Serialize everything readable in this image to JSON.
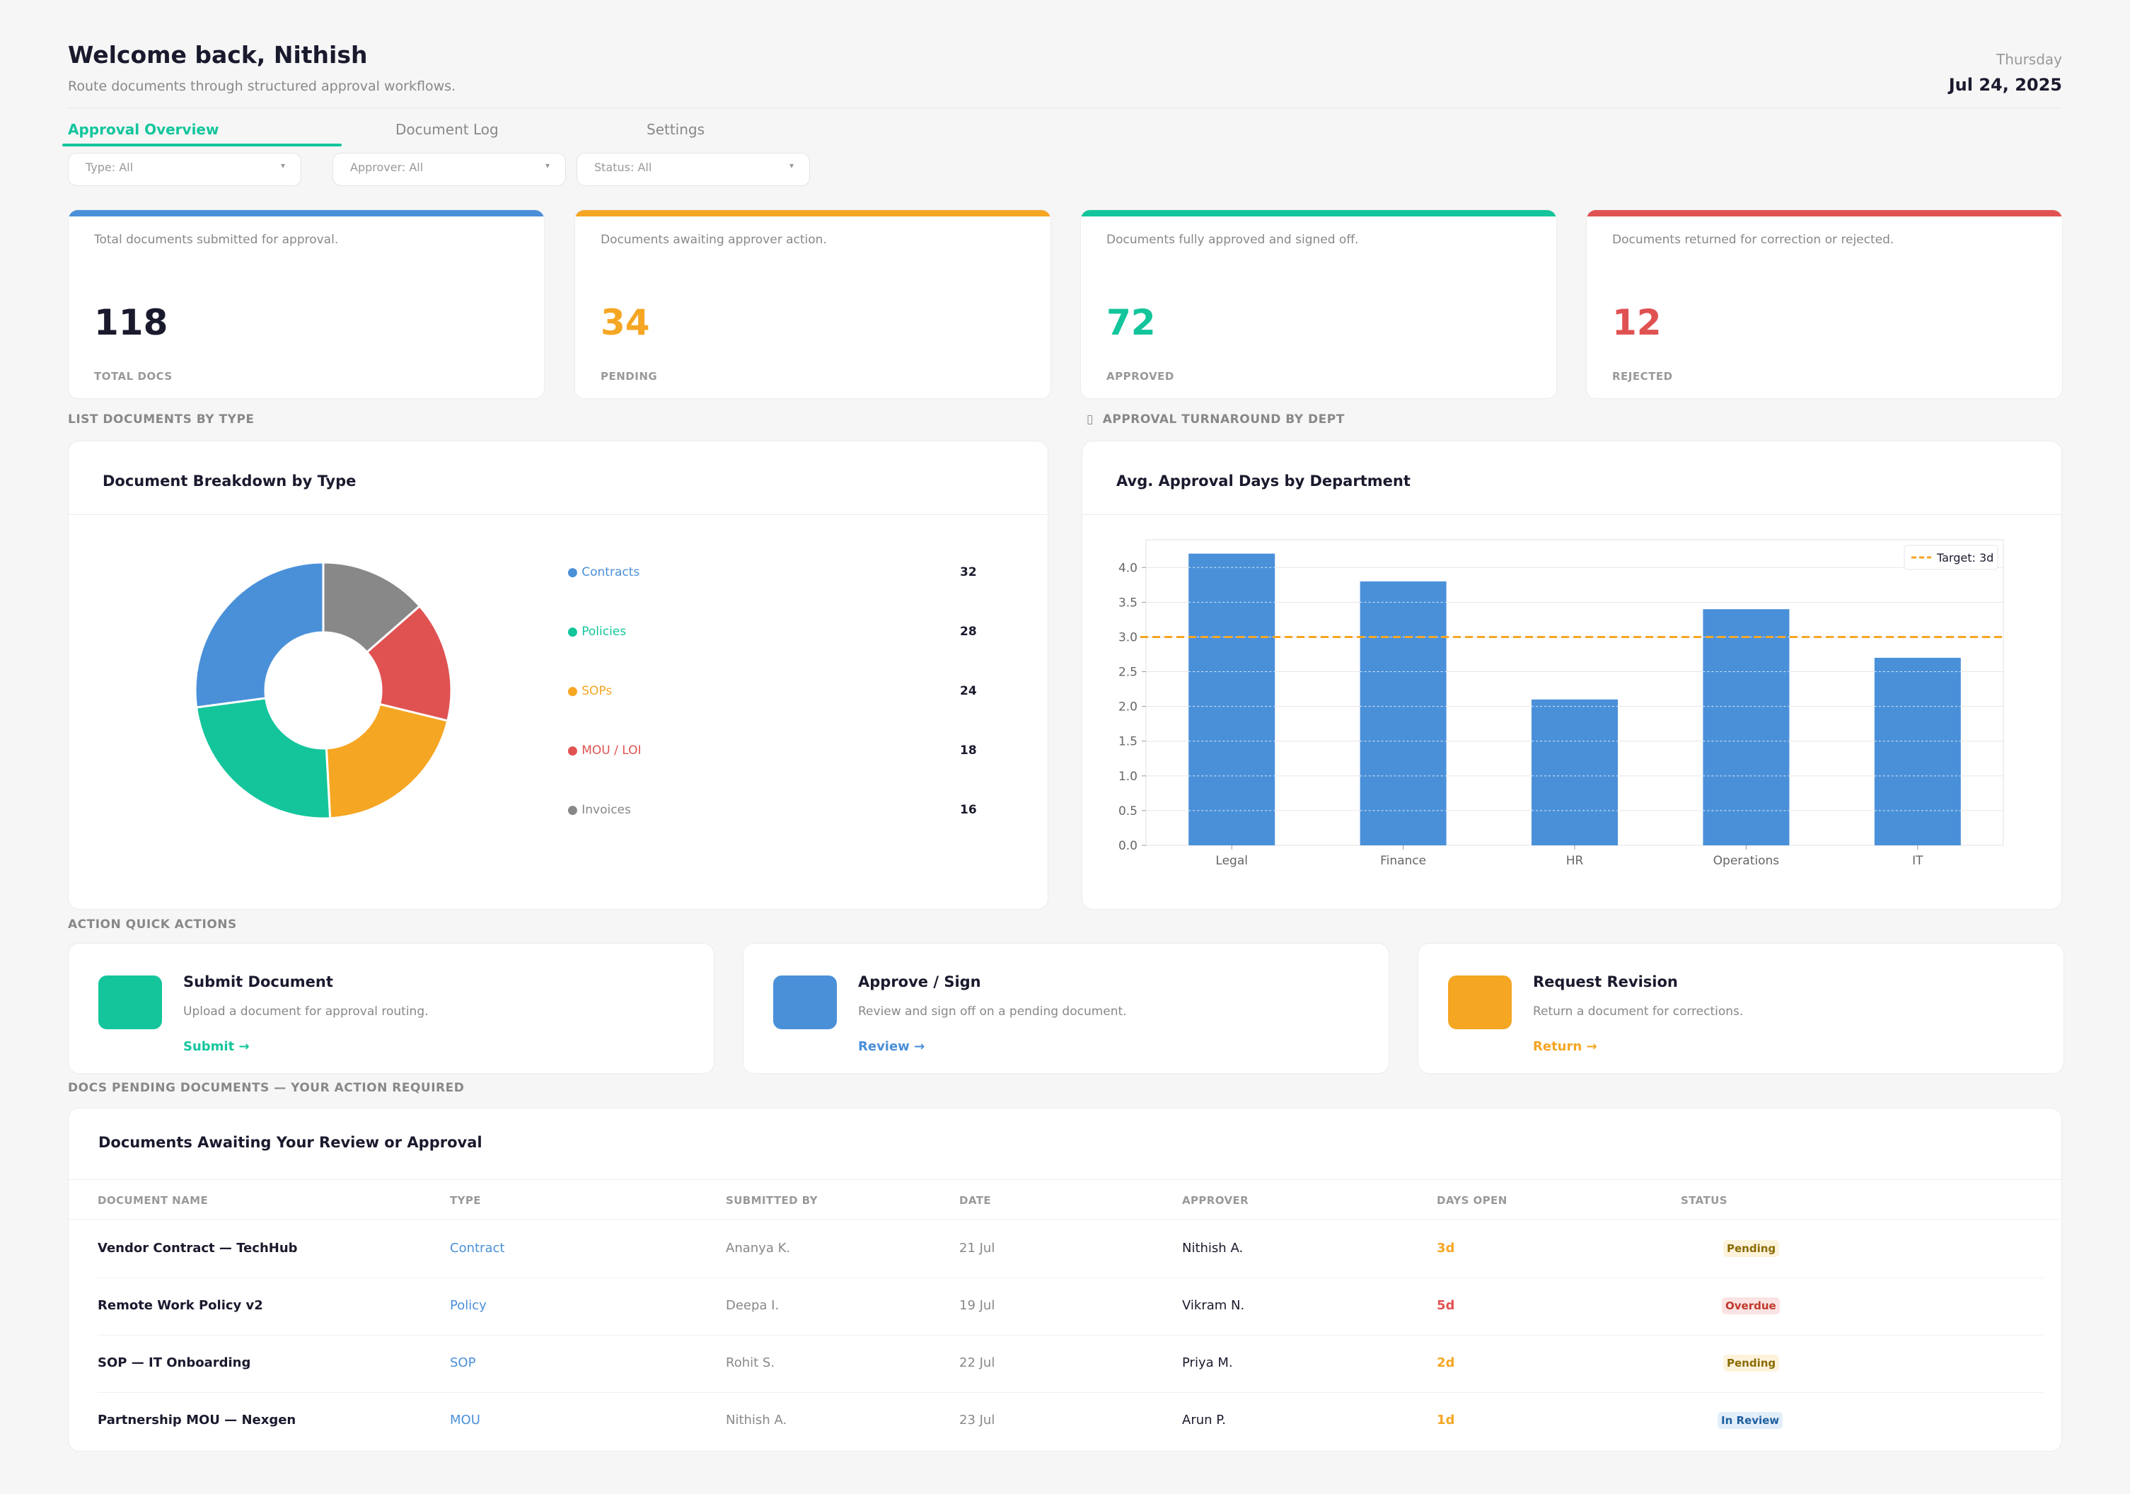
{
  "header": {
    "greeting": "Welcome back, Nithish",
    "subtitle": "Route documents through structured approval workflows.",
    "day": "Thursday",
    "date": "Jul 24, 2025"
  },
  "tabs": [
    {
      "label": "Approval Overview",
      "active": true
    },
    {
      "label": "Document Log",
      "active": false
    },
    {
      "label": "Settings",
      "active": false
    }
  ],
  "filters": [
    {
      "label": "Type: All",
      "caret": "▾"
    },
    {
      "label": "Approver: All",
      "caret": "▾"
    },
    {
      "label": "Status: All",
      "caret": "▾"
    }
  ],
  "kpis": [
    {
      "desc": "Total documents submitted for approval.",
      "value": "118",
      "label": "TOTAL DOCS",
      "color": "#4a90d9",
      "value_color": "#1a1a2e"
    },
    {
      "desc": "Documents awaiting approver action.",
      "value": "34",
      "label": "PENDING",
      "color": "#f5a623",
      "value_color": "#f5a623"
    },
    {
      "desc": "Documents fully approved and signed off.",
      "value": "72",
      "label": "APPROVED",
      "color": "#14c59c",
      "value_color": "#14c59c"
    },
    {
      "desc": "Documents returned for correction or rejected.",
      "value": "12",
      "label": "REJECTED",
      "color": "#e05252",
      "value_color": "#e05252"
    }
  ],
  "sections": {
    "by_type": "LIST  DOCUMENTS BY TYPE",
    "turnaround_icon": "▯",
    "turnaround": "APPROVAL TURNAROUND BY DEPT",
    "quick_actions": "ACTION  QUICK ACTIONS",
    "pending": "DOCS  PENDING DOCUMENTS — YOUR ACTION REQUIRED"
  },
  "breakdown_panel": {
    "title": "Document Breakdown by Type",
    "bullet": "●"
  },
  "turnaround_panel": {
    "title": "Avg. Approval Days by Department"
  },
  "chart_data": [
    {
      "type": "pie",
      "categories": [
        "Contracts",
        "Policies",
        "SOPs",
        "MOU / LOI",
        "Invoices"
      ],
      "values": [
        32,
        28,
        24,
        18,
        16
      ],
      "colors": [
        "#4a90d9",
        "#14c59c",
        "#f5a623",
        "#e05252",
        "#888888"
      ],
      "donut": true,
      "legend": "right"
    },
    {
      "type": "bar",
      "categories": [
        "Legal",
        "Finance",
        "HR",
        "Operations",
        "IT"
      ],
      "values": [
        4.2,
        3.8,
        2.1,
        3.4,
        2.7
      ],
      "ylim": [
        0,
        4.4
      ],
      "yticks": [
        "0.0",
        "0.5",
        "1.0",
        "1.5",
        "2.0",
        "2.5",
        "3.0",
        "3.5",
        "4.0"
      ],
      "target": 3,
      "target_label": "Target: 3d",
      "bar_color": "#4a90d9",
      "target_color": "#f5a623",
      "grid": true,
      "legend": "top-right"
    }
  ],
  "quick_actions": [
    {
      "title": "Submit Document",
      "desc": "Upload a document for approval routing.",
      "link": "Submit →",
      "color": "#14c59c"
    },
    {
      "title": "Approve / Sign",
      "desc": "Review and sign off on a pending document.",
      "link": "Review →",
      "color": "#4a90d9"
    },
    {
      "title": "Request Revision",
      "desc": "Return a document for corrections.",
      "link": "Return →",
      "color": "#f5a623"
    }
  ],
  "table": {
    "title": "Documents Awaiting Your Review or Approval",
    "columns": [
      "DOCUMENT NAME",
      "TYPE",
      "SUBMITTED BY",
      "DATE",
      "APPROVER",
      "DAYS OPEN",
      "STATUS"
    ],
    "rows": [
      {
        "name": "Vendor Contract — TechHub",
        "type": "Contract",
        "submitted_by": "Ananya K.",
        "date": "21 Jul",
        "approver": "Nithish A.",
        "days": "3d",
        "days_color": "#f5a623",
        "status": "Pending",
        "status_fg": "#8a6a00",
        "status_bg": "#fdf3dc"
      },
      {
        "name": "Remote Work Policy v2",
        "type": "Policy",
        "submitted_by": "Deepa I.",
        "date": "19 Jul",
        "approver": "Vikram N.",
        "days": "5d",
        "days_color": "#e05252",
        "status": "Overdue",
        "status_fg": "#c0392b",
        "status_bg": "#fbe3e3"
      },
      {
        "name": "SOP — IT Onboarding",
        "type": "SOP",
        "submitted_by": "Rohit S.",
        "date": "22 Jul",
        "approver": "Priya M.",
        "days": "2d",
        "days_color": "#f5a623",
        "status": "Pending",
        "status_fg": "#8a6a00",
        "status_bg": "#fdf3dc"
      },
      {
        "name": "Partnership MOU — Nexgen",
        "type": "MOU",
        "submitted_by": "Nithish A.",
        "date": "23 Jul",
        "approver": "Arun P.",
        "days": "1d",
        "days_color": "#f5a623",
        "status": "In Review",
        "status_fg": "#1f5f9e",
        "status_bg": "#e2eefa"
      }
    ]
  }
}
